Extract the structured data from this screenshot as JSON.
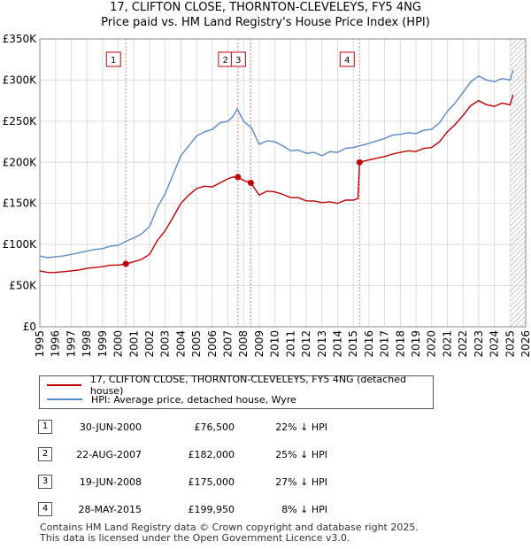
{
  "chart_data": {
    "type": "line",
    "title": "17, CLIFTON CLOSE, THORNTON-CLEVELEYS, FY5 4NG",
    "subtitle": "Price paid vs. HM Land Registry's House Price Index (HPI)",
    "xlim": [
      1995,
      2026
    ],
    "ylim": [
      0,
      350000
    ],
    "x_ticks": [
      "1995",
      "1996",
      "1997",
      "1998",
      "1999",
      "2000",
      "2001",
      "2002",
      "2003",
      "2004",
      "2005",
      "2006",
      "2007",
      "2008",
      "2009",
      "2010",
      "2011",
      "2012",
      "2013",
      "2014",
      "2015",
      "2016",
      "2017",
      "2018",
      "2019",
      "2020",
      "2021",
      "2022",
      "2023",
      "2024",
      "2025",
      "2026"
    ],
    "y_ticks": [
      {
        "value": 0,
        "label": "£0"
      },
      {
        "value": 50000,
        "label": "£50K"
      },
      {
        "value": 100000,
        "label": "£100K"
      },
      {
        "value": 150000,
        "label": "£150K"
      },
      {
        "value": 200000,
        "label": "£200K"
      },
      {
        "value": 250000,
        "label": "£250K"
      },
      {
        "value": 300000,
        "label": "£300K"
      },
      {
        "value": 350000,
        "label": "£350K"
      }
    ],
    "grid": true,
    "hatch_from": 2025.0,
    "series": [
      {
        "name": "HPI: Average price, detached house, Wyre",
        "color": "#5b8ac9",
        "x": [
          1995.0,
          1995.5,
          1996.0,
          1996.5,
          1997.0,
          1997.5,
          1998.0,
          1998.5,
          1999.0,
          1999.5,
          2000.0,
          2000.5,
          2001.0,
          2001.5,
          2002.0,
          2002.5,
          2003.0,
          2003.5,
          2004.0,
          2004.5,
          2005.0,
          2005.5,
          2006.0,
          2006.5,
          2007.0,
          2007.3,
          2007.6,
          2008.0,
          2008.5,
          2009.0,
          2009.5,
          2010.0,
          2010.5,
          2011.0,
          2011.5,
          2012.0,
          2012.5,
          2013.0,
          2013.5,
          2014.0,
          2014.5,
          2015.0,
          2015.4,
          2015.8,
          2016.5,
          2017.0,
          2017.5,
          2018.0,
          2018.5,
          2019.0,
          2019.5,
          2020.0,
          2020.5,
          2021.0,
          2021.5,
          2022.0,
          2022.5,
          2023.0,
          2023.5,
          2024.0,
          2024.5,
          2025.0,
          2025.2
        ],
        "values": [
          86000,
          84000,
          85000,
          86000,
          88000,
          90000,
          92000,
          94000,
          95000,
          98000,
          99000,
          104000,
          108000,
          113000,
          122000,
          145000,
          162000,
          185000,
          208000,
          220000,
          232000,
          237000,
          240000,
          248000,
          250000,
          255000,
          265000,
          250000,
          242000,
          222000,
          226000,
          225000,
          220000,
          214000,
          215000,
          211000,
          212000,
          208000,
          213000,
          212000,
          217000,
          218000,
          220000,
          222000,
          226000,
          229000,
          233000,
          234000,
          236000,
          235000,
          239000,
          240000,
          248000,
          262000,
          272000,
          285000,
          298000,
          305000,
          300000,
          298000,
          302000,
          300000,
          312000
        ]
      },
      {
        "name": "17, CLIFTON CLOSE, THORNTON-CLEVELEYS, FY5 4NG (detached house)",
        "color": "#c00000",
        "x": [
          1995.0,
          1995.5,
          1996.0,
          1996.5,
          1997.0,
          1997.5,
          1998.0,
          1998.5,
          1999.0,
          1999.5,
          2000.0,
          2000.49,
          2001.0,
          2001.5,
          2002.0,
          2002.5,
          2003.0,
          2003.5,
          2004.0,
          2004.5,
          2005.0,
          2005.5,
          2006.0,
          2006.5,
          2007.0,
          2007.3,
          2007.64,
          2008.0,
          2008.46,
          2009.0,
          2009.5,
          2010.0,
          2010.5,
          2011.0,
          2011.5,
          2012.0,
          2012.5,
          2013.0,
          2013.5,
          2014.0,
          2014.5,
          2015.0,
          2015.3,
          2015.4,
          2015.8,
          2016.5,
          2017.0,
          2017.5,
          2018.0,
          2018.5,
          2019.0,
          2019.5,
          2020.0,
          2020.5,
          2021.0,
          2021.5,
          2022.0,
          2022.5,
          2023.0,
          2023.5,
          2024.0,
          2024.5,
          2025.0,
          2025.2
        ],
        "values": [
          68000,
          66000,
          66000,
          67000,
          68000,
          69000,
          71000,
          72000,
          73000,
          75000,
          75000,
          76500,
          79000,
          82000,
          88000,
          105000,
          117000,
          133000,
          150000,
          160000,
          168000,
          171000,
          170000,
          175000,
          180000,
          182000,
          182000,
          178000,
          175000,
          160000,
          165000,
          164000,
          161000,
          157000,
          157000,
          153000,
          153000,
          151000,
          152000,
          150000,
          154000,
          154000,
          156000,
          199950,
          202000,
          205000,
          207000,
          210000,
          212000,
          214000,
          213000,
          217000,
          218000,
          225000,
          237000,
          246000,
          257000,
          269000,
          275000,
          270000,
          268000,
          272000,
          270000,
          282000
        ]
      }
    ],
    "sales": [
      {
        "num": "1",
        "x": 2000.49,
        "value": 76500
      },
      {
        "num": "2",
        "x": 2007.64,
        "value": 182000
      },
      {
        "num": "3",
        "x": 2008.46,
        "value": 175000
      },
      {
        "num": "4",
        "x": 2015.4,
        "value": 199950
      }
    ]
  },
  "legend": {
    "property_label": "17, CLIFTON CLOSE, THORNTON-CLEVELEYS, FY5 4NG (detached house)",
    "hpi_label": "HPI: Average price, detached house, Wyre"
  },
  "transactions": [
    {
      "num": "1",
      "date": "30-JUN-2000",
      "price": "£76,500",
      "hpi": "22% ↓ HPI"
    },
    {
      "num": "2",
      "date": "22-AUG-2007",
      "price": "£182,000",
      "hpi": "25% ↓ HPI"
    },
    {
      "num": "3",
      "date": "19-JUN-2008",
      "price": "£175,000",
      "hpi": "27% ↓ HPI"
    },
    {
      "num": "4",
      "date": "28-MAY-2015",
      "price": "£199,950",
      "hpi": "8% ↓ HPI"
    }
  ],
  "footer": {
    "line1": "Contains HM Land Registry data © Crown copyright and database right 2025.",
    "line2": "This data is licensed under the Open Government Licence v3.0."
  }
}
